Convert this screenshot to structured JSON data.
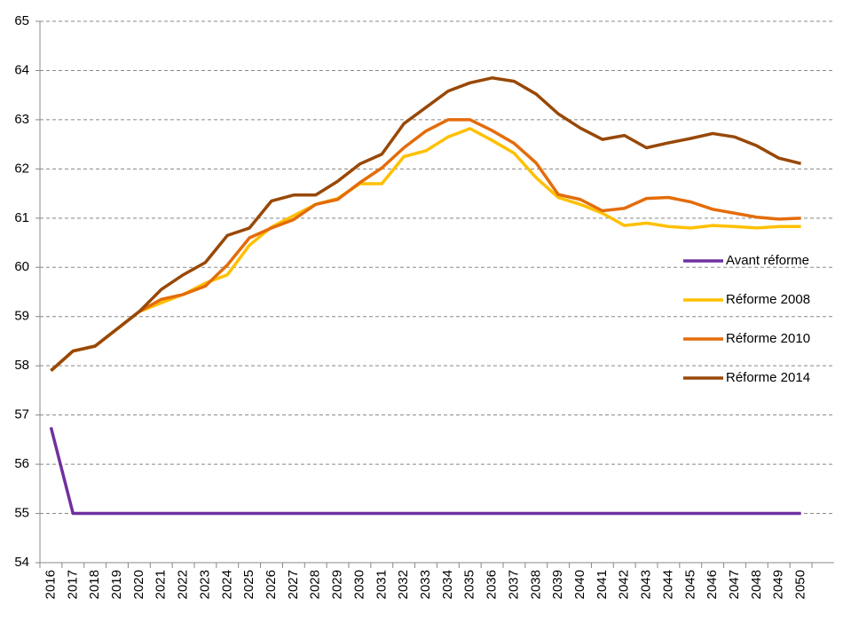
{
  "chart_data": {
    "type": "line",
    "categories": [
      "2016",
      "2017",
      "2018",
      "2019",
      "2020",
      "2021",
      "2022",
      "2023",
      "2024",
      "2025",
      "2026",
      "2027",
      "2028",
      "2029",
      "2030",
      "2031",
      "2032",
      "2033",
      "2034",
      "2035",
      "2036",
      "2037",
      "2038",
      "2039",
      "2040",
      "2041",
      "2042",
      "2043",
      "2044",
      "2045",
      "2046",
      "2047",
      "2048",
      "2049",
      "2050"
    ],
    "series": [
      {
        "name": "Avant réforme",
        "color": "#7030a0",
        "values": [
          56.75,
          55,
          55,
          55,
          55,
          55,
          55,
          55,
          55,
          55,
          55,
          55,
          55,
          55,
          55,
          55,
          55,
          55,
          55,
          55,
          55,
          55,
          55,
          55,
          55,
          55,
          55,
          55,
          55,
          55,
          55,
          55,
          55,
          55,
          55
        ]
      },
      {
        "name": "Réforme 2008",
        "color": "#ffc000",
        "values": [
          57.9,
          58.3,
          58.4,
          58.75,
          59.1,
          59.28,
          59.45,
          59.68,
          59.85,
          60.45,
          60.82,
          61.05,
          61.28,
          61.4,
          61.7,
          61.7,
          62.25,
          62.37,
          62.65,
          62.82,
          62.58,
          62.32,
          61.82,
          61.42,
          61.28,
          61.1,
          60.85,
          60.9,
          60.83,
          60.8,
          60.85,
          60.83,
          60.8,
          60.83,
          60.83
        ]
      },
      {
        "name": "Réforme 2010",
        "color": "#e46c0a",
        "values": [
          57.9,
          58.3,
          58.4,
          58.75,
          59.1,
          59.35,
          59.45,
          59.62,
          60.05,
          60.6,
          60.8,
          60.97,
          61.28,
          61.38,
          61.72,
          62.02,
          62.43,
          62.77,
          63.0,
          63.0,
          62.78,
          62.52,
          62.12,
          61.48,
          61.38,
          61.15,
          61.2,
          61.4,
          61.42,
          61.33,
          61.18,
          61.1,
          61.02,
          60.98,
          61.0
        ]
      },
      {
        "name": "Réforme 2014",
        "color": "#984807",
        "values": [
          57.9,
          58.3,
          58.4,
          58.75,
          59.1,
          59.55,
          59.85,
          60.1,
          60.65,
          60.8,
          61.35,
          61.47,
          61.47,
          61.75,
          62.1,
          62.3,
          62.92,
          63.25,
          63.58,
          63.75,
          63.85,
          63.78,
          63.52,
          63.12,
          62.83,
          62.6,
          62.68,
          62.43,
          62.53,
          62.62,
          62.72,
          62.65,
          62.47,
          62.22,
          62.11
        ]
      }
    ],
    "ylim": [
      54,
      65
    ],
    "yticks": [
      54,
      55,
      56,
      57,
      58,
      59,
      60,
      61,
      62,
      63,
      64,
      65
    ],
    "grid": true,
    "legend": "right"
  }
}
